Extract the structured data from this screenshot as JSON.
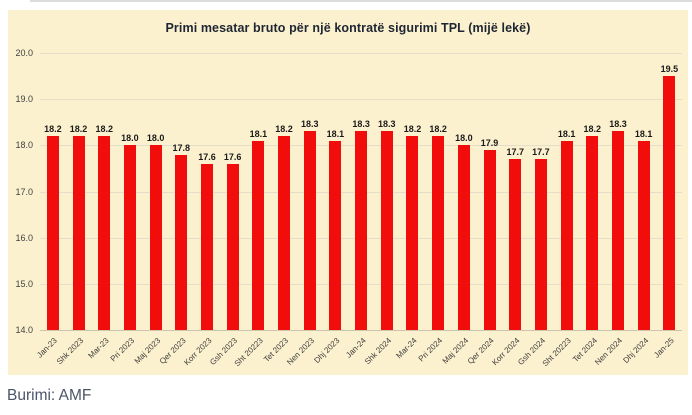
{
  "page": {
    "source_label": "Burimi: AMF",
    "background": "#ffffff",
    "card_background": "#fcf1ce"
  },
  "colors": {
    "bar": "#f20d0d",
    "grid": "#e4decb",
    "axis": "#cdc6af",
    "title": "#1e2633",
    "value_label": "#1a1a1a",
    "tick_label": "#3d3d3d",
    "source_text": "#4a5568"
  },
  "chart_data": {
    "type": "bar",
    "title": "Primi mesatar bruto për një kontratë sigurimi TPL (mijë lekë)",
    "xlabel": "",
    "ylabel": "",
    "ylim": [
      14.0,
      20.0
    ],
    "yticks": [
      "20.0",
      "19.0",
      "18.0",
      "17.0",
      "16.0",
      "15.0",
      "14.0"
    ],
    "grid": true,
    "legend": false,
    "categories": [
      "Jan-23",
      "Shk 2023",
      "Mar-23",
      "Pri 2023",
      "Maj 2023",
      "Qer 2023",
      "Korr 2023",
      "Gsh 2023",
      "Sht 20223",
      "Tet 2023",
      "Nen 2023",
      "Dhj 2023",
      "Jan-24",
      "Shk 2024",
      "Mar-24",
      "Pri 2024",
      "Maj 2024",
      "Qer 2024",
      "Korr 2024",
      "Gsh 2024",
      "Sht 20223",
      "Tet 2024",
      "Nen 2024",
      "Dhj 2024",
      "Jan-25"
    ],
    "values": [
      18.2,
      18.2,
      18.2,
      18.0,
      18.0,
      17.8,
      17.6,
      17.6,
      18.1,
      18.2,
      18.3,
      18.1,
      18.3,
      18.3,
      18.2,
      18.2,
      18.0,
      17.9,
      17.7,
      17.7,
      18.1,
      18.2,
      18.3,
      18.1,
      19.5
    ],
    "value_labels": [
      "18.2",
      "18.2",
      "18.2",
      "18.0",
      "18.0",
      "17.8",
      "17.6",
      "17.6",
      "18.1",
      "18.2",
      "18.3",
      "18.1",
      "18.3",
      "18.3",
      "18.2",
      "18.2",
      "18.0",
      "17.9",
      "17.7",
      "17.7",
      "18.1",
      "18.2",
      "18.3",
      "18.1",
      "19.5"
    ]
  }
}
